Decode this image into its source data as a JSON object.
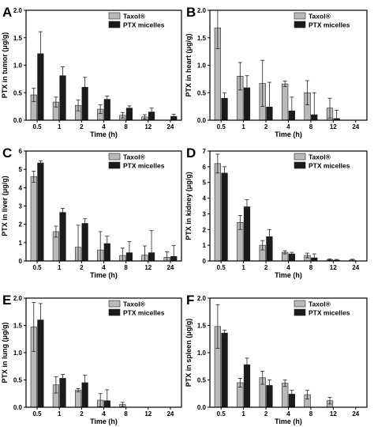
{
  "colors": {
    "taxol": "#b9b9b9",
    "micelles": "#1a1a1a",
    "axis": "#000000"
  },
  "chart_data": [
    {
      "type": "bar",
      "panel": "A",
      "categories": [
        "0.5",
        "1",
        "2",
        "4",
        "8",
        "12",
        "24"
      ],
      "xlabel": "Time (h)",
      "ylabel": "PTX  in tumor (μg/g)",
      "ylim": [
        0,
        2.0
      ],
      "yticks": [
        "0.0",
        "0.5",
        "1.0",
        "1.5",
        "2.0"
      ],
      "ytick_values": [
        0,
        0.5,
        1.0,
        1.5,
        2.0
      ],
      "legend": {
        "position": "top-right",
        "entries": [
          "Taxol®",
          "PTX micelles"
        ]
      },
      "series": [
        {
          "name": "Taxol®",
          "values": [
            0.46,
            0.33,
            0.27,
            0.2,
            0.09,
            0.06,
            0.0
          ],
          "errors": [
            0.12,
            0.09,
            0.1,
            0.08,
            0.05,
            0.04,
            0.0
          ]
        },
        {
          "name": "PTX micelles",
          "values": [
            1.21,
            0.81,
            0.6,
            0.38,
            0.22,
            0.15,
            0.07
          ],
          "errors": [
            0.4,
            0.16,
            0.18,
            0.06,
            0.04,
            0.07,
            0.04
          ]
        }
      ]
    },
    {
      "type": "bar",
      "panel": "B",
      "categories": [
        "0.5",
        "1",
        "2",
        "4",
        "8",
        "12",
        "24"
      ],
      "xlabel": "Time (h)",
      "ylabel": "PTX  in heart (μg/g)",
      "ylim": [
        0,
        2.0
      ],
      "yticks": [
        "0.0",
        "0.5",
        "1.0",
        "1.5",
        "2.0"
      ],
      "ytick_values": [
        0,
        0.5,
        1.0,
        1.5,
        2.0
      ],
      "legend": {
        "position": "top-right",
        "entries": [
          "Taxol®",
          "PTX micelles"
        ]
      },
      "series": [
        {
          "name": "Taxol®",
          "values": [
            1.68,
            0.8,
            0.67,
            0.66,
            0.5,
            0.22,
            0.0
          ],
          "errors": [
            0.38,
            0.25,
            0.42,
            0.05,
            0.22,
            0.18,
            0.0
          ]
        },
        {
          "name": "PTX micelles",
          "values": [
            0.4,
            0.59,
            0.24,
            0.17,
            0.1,
            0.03,
            0.0
          ],
          "errors": [
            0.1,
            0.22,
            0.45,
            0.25,
            0.4,
            0.15,
            0.0
          ]
        }
      ]
    },
    {
      "type": "bar",
      "panel": "C",
      "categories": [
        "0.5",
        "1",
        "2",
        "4",
        "8",
        "12",
        "24"
      ],
      "xlabel": "Time (h)",
      "ylabel": "PTX  in liver (μg/g)",
      "ylim": [
        0,
        6
      ],
      "yticks": [
        "0",
        "1",
        "2",
        "3",
        "4",
        "5",
        "6"
      ],
      "ytick_values": [
        0,
        1,
        2,
        3,
        4,
        5,
        6
      ],
      "legend": {
        "position": "top-right",
        "entries": [
          "Taxol®",
          "PTX micelles"
        ]
      },
      "series": [
        {
          "name": "Taxol®",
          "values": [
            4.6,
            1.6,
            0.75,
            0.6,
            0.3,
            0.32,
            0.2
          ],
          "errors": [
            0.3,
            0.3,
            1.2,
            1.0,
            0.4,
            0.5,
            0.3
          ]
        },
        {
          "name": "PTX micelles",
          "values": [
            5.35,
            2.65,
            2.05,
            0.95,
            0.45,
            0.45,
            0.25
          ],
          "errors": [
            0.12,
            0.22,
            0.25,
            0.4,
            0.6,
            1.2,
            0.6
          ]
        }
      ]
    },
    {
      "type": "bar",
      "panel": "D",
      "categories": [
        "0.5",
        "1",
        "2",
        "4",
        "8",
        "12",
        "24"
      ],
      "xlabel": "Time (h)",
      "ylabel": "PTX  in kidney (μg/g)",
      "ylim": [
        0,
        7
      ],
      "yticks": [
        "0",
        "1",
        "2",
        "3",
        "4",
        "5",
        "6",
        "7"
      ],
      "ytick_values": [
        0,
        1,
        2,
        3,
        4,
        5,
        6,
        7
      ],
      "legend": {
        "position": "top-right",
        "entries": [
          "Taxol®",
          "PTX micelles"
        ]
      },
      "series": [
        {
          "name": "Taxol®",
          "values": [
            6.2,
            2.45,
            1.0,
            0.55,
            0.35,
            0.08,
            0.06
          ],
          "errors": [
            0.6,
            0.45,
            0.3,
            0.1,
            0.15,
            0.05,
            0.05
          ]
        },
        {
          "name": "PTX micelles",
          "values": [
            5.6,
            3.45,
            1.55,
            0.45,
            0.2,
            0.05,
            0.0
          ],
          "errors": [
            0.4,
            0.45,
            0.45,
            0.1,
            0.25,
            0.05,
            0.0
          ]
        }
      ]
    },
    {
      "type": "bar",
      "panel": "E",
      "categories": [
        "0.5",
        "1",
        "2",
        "4",
        "8",
        "12",
        "24"
      ],
      "xlabel": "Time (h)",
      "ylabel": "PTX  in lung (μg/g)",
      "ylim": [
        0,
        2.0
      ],
      "yticks": [
        "0.0",
        "0.5",
        "1.0",
        "1.5",
        "2.0"
      ],
      "ytick_values": [
        0,
        0.5,
        1.0,
        1.5,
        2.0
      ],
      "legend": {
        "position": "top-right",
        "entries": [
          "Taxol®",
          "PTX micelles"
        ]
      },
      "series": [
        {
          "name": "Taxol®",
          "values": [
            1.47,
            0.41,
            0.31,
            0.13,
            0.05,
            0.0,
            0.0
          ],
          "errors": [
            0.45,
            0.15,
            0.03,
            0.12,
            0.04,
            0.0,
            0.0
          ]
        },
        {
          "name": "PTX micelles",
          "values": [
            1.6,
            0.53,
            0.45,
            0.12,
            0.0,
            0.0,
            0.0
          ],
          "errors": [
            0.3,
            0.07,
            0.14,
            0.2,
            0.0,
            0.0,
            0.0
          ]
        }
      ]
    },
    {
      "type": "bar",
      "panel": "F",
      "categories": [
        "0.5",
        "1",
        "2",
        "4",
        "8",
        "12",
        "24"
      ],
      "xlabel": "Time (h)",
      "ylabel": "PTX  in spleen (μg/g)",
      "ylim": [
        0,
        2.0
      ],
      "yticks": [
        "0.0",
        "0.5",
        "1.0",
        "1.5",
        "2.0"
      ],
      "ytick_values": [
        0,
        0.5,
        1.0,
        1.5,
        2.0
      ],
      "legend": {
        "position": "top-right",
        "entries": [
          "Taxol®",
          "PTX micelles"
        ]
      },
      "series": [
        {
          "name": "Taxol®",
          "values": [
            1.48,
            0.45,
            0.54,
            0.44,
            0.23,
            0.12,
            0.0
          ],
          "errors": [
            0.4,
            0.08,
            0.12,
            0.06,
            0.08,
            0.06,
            0.0
          ]
        },
        {
          "name": "PTX micelles",
          "values": [
            1.36,
            0.78,
            0.4,
            0.24,
            0.0,
            0.0,
            0.0
          ],
          "errors": [
            0.05,
            0.12,
            0.1,
            0.07,
            0.0,
            0.0,
            0.0
          ]
        }
      ]
    }
  ]
}
